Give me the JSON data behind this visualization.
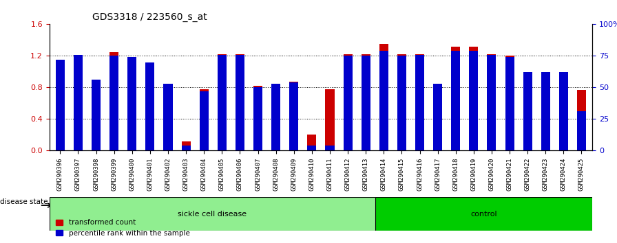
{
  "title": "GDS3318 / 223560_s_at",
  "samples": [
    "GSM290396",
    "GSM290397",
    "GSM290398",
    "GSM290399",
    "GSM290400",
    "GSM290401",
    "GSM290402",
    "GSM290403",
    "GSM290404",
    "GSM290405",
    "GSM290406",
    "GSM290407",
    "GSM290408",
    "GSM290409",
    "GSM290410",
    "GSM290411",
    "GSM290412",
    "GSM290413",
    "GSM290414",
    "GSM290415",
    "GSM290416",
    "GSM290417",
    "GSM290418",
    "GSM290419",
    "GSM290420",
    "GSM290421",
    "GSM290422",
    "GSM290423",
    "GSM290424",
    "GSM290425"
  ],
  "red_values": [
    1.0,
    1.2,
    0.9,
    1.25,
    1.0,
    0.95,
    0.75,
    0.12,
    0.78,
    1.22,
    1.22,
    0.82,
    0.73,
    0.87,
    0.2,
    0.78,
    1.22,
    1.22,
    1.35,
    1.22,
    1.22,
    0.73,
    1.32,
    1.32,
    1.22,
    1.2,
    0.92,
    0.95,
    0.92,
    0.77
  ],
  "blue_values": [
    0.72,
    0.76,
    0.56,
    0.75,
    0.74,
    0.7,
    0.53,
    0.04,
    0.47,
    0.76,
    0.76,
    0.5,
    0.53,
    0.54,
    0.04,
    0.04,
    0.75,
    0.75,
    0.79,
    0.75,
    0.76,
    0.53,
    0.79,
    0.79,
    0.76,
    0.74,
    0.62,
    0.62,
    0.62,
    0.31
  ],
  "sickle_count": 18,
  "control_count": 12,
  "left_ylim": [
    0,
    1.6
  ],
  "right_ylim": [
    0,
    100
  ],
  "left_yticks": [
    0,
    0.4,
    0.8,
    1.2,
    1.6
  ],
  "right_yticks": [
    0,
    25,
    50,
    75,
    100
  ],
  "right_yticklabels": [
    "0",
    "25",
    "50",
    "75",
    "100%"
  ],
  "bar_color_red": "#CC0000",
  "bar_color_blue": "#0000CC",
  "sickle_label": "sickle cell disease",
  "control_label": "control",
  "disease_state_label": "disease state",
  "legend_red": "transformed count",
  "legend_blue": "percentile rank within the sample",
  "sickle_color": "#90EE90",
  "control_color": "#00CC00",
  "grid_color": "black",
  "bar_width": 0.5
}
